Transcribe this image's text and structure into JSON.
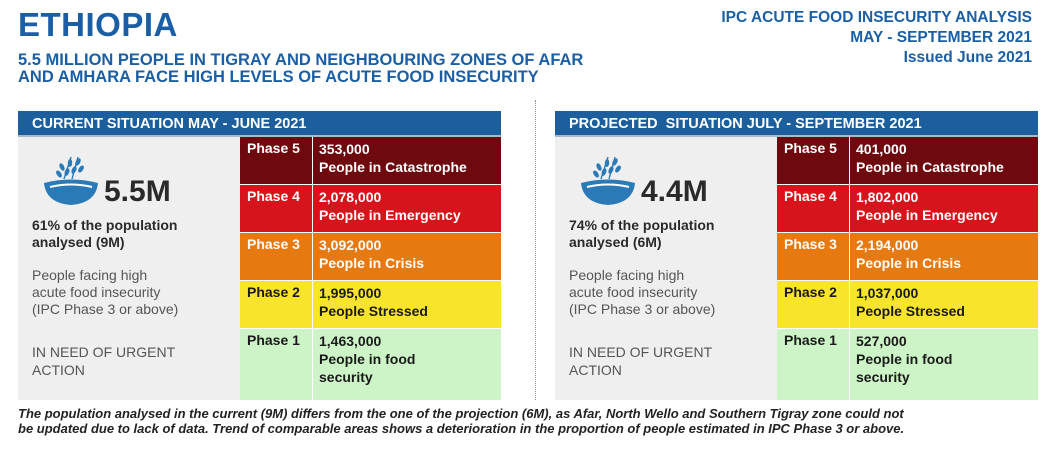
{
  "header": {
    "country": "ETHIOPIA",
    "subtitle_line1": "5.5 MILLION PEOPLE IN TIGRAY AND NEIGHBOURING ZONES OF AFAR",
    "subtitle_line2": "AND AMHARA FACE HIGH LEVELS OF ACUTE FOOD INSECURITY",
    "analysis_title": "IPC ACUTE FOOD INSECURITY ANALYSIS",
    "period": "MAY - SEPTEMBER 2021",
    "issued": "Issued June 2021"
  },
  "colors": {
    "brand_blue": "#1a5fa6",
    "header_blue": "#1d5f9c",
    "phase5": "#6e0a0f",
    "phase4": "#d7141c",
    "phase3": "#e67a10",
    "phase2": "#f8e42a",
    "phase1": "#cdf4c6"
  },
  "current": {
    "title": "CURRENT SITUATION MAY - JUNE 2021",
    "big_number": "5.5M",
    "pct_line1": "61% of the population",
    "pct_line2": "analysed (9M)",
    "desc_line1": "People facing high",
    "desc_line2": "acute food insecurity",
    "desc_line3": "(IPC Phase 3 or above)",
    "action_line1": "IN NEED OF URGENT",
    "action_line2": "ACTION",
    "phases": [
      {
        "label": "Phase 5",
        "value": "353,000",
        "desc1": "People in Catastrophe",
        "desc2": ""
      },
      {
        "label": "Phase 4",
        "value": "2,078,000",
        "desc1": "People in Emergency",
        "desc2": ""
      },
      {
        "label": "Phase 3",
        "value": "3,092,000",
        "desc1": "People in Crisis",
        "desc2": ""
      },
      {
        "label": "Phase 2",
        "value": "1,995,000",
        "desc1": "People Stressed",
        "desc2": ""
      },
      {
        "label": "Phase 1",
        "value": "1,463,000",
        "desc1": "People in food",
        "desc2": "security"
      }
    ]
  },
  "projected": {
    "title": "PROJECTED  SITUATION JULY - SEPTEMBER 2021",
    "big_number": "4.4M",
    "pct_line1": "74% of the population",
    "pct_line2": "analysed (6M)",
    "desc_line1": "People facing high",
    "desc_line2": "acute food insecurity",
    "desc_line3": "(IPC Phase 3 or above)",
    "action_line1": "IN NEED OF URGENT",
    "action_line2": "ACTION",
    "phases": [
      {
        "label": "Phase 5",
        "value": "401,000",
        "desc1": "People in Catastrophe",
        "desc2": ""
      },
      {
        "label": "Phase 4",
        "value": "1,802,000",
        "desc1": "People in Emergency",
        "desc2": ""
      },
      {
        "label": "Phase 3",
        "value": "2,194,000",
        "desc1": "People in Crisis",
        "desc2": ""
      },
      {
        "label": "Phase 2",
        "value": "1,037,000",
        "desc1": "People Stressed",
        "desc2": ""
      },
      {
        "label": "Phase 1",
        "value": "527,000",
        "desc1": "People in food",
        "desc2": "security"
      }
    ]
  },
  "footnote": {
    "line1": "The population analysed in the current (9M) differs from the one of the projection (6M), as Afar, North Wello and Southern Tigray zone could not",
    "line2": "be updated due to lack of data. Trend of comparable areas shows a deterioration in the proportion of people estimated in IPC Phase 3 or above."
  }
}
